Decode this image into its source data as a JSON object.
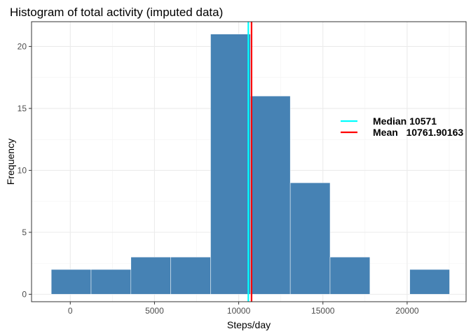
{
  "chart_data": {
    "type": "bar",
    "title": "Histogram of total activity (imputed data)",
    "xlabel": "Steps/day",
    "ylabel": "Frequency",
    "xlim": [
      -2300,
      23500
    ],
    "ylim": [
      -0.6,
      22
    ],
    "x_ticks": [
      0,
      5000,
      10000,
      15000,
      20000
    ],
    "x_tick_labels": [
      "0",
      "5000",
      "10000",
      "15000",
      "20000"
    ],
    "y_ticks": [
      0,
      5,
      10,
      15,
      20
    ],
    "y_tick_labels": [
      "0",
      "5",
      "10",
      "15",
      "20"
    ],
    "bins": [
      {
        "x0": -1129,
        "x1": 1236,
        "count": 2
      },
      {
        "x0": 1236,
        "x1": 3601,
        "count": 2
      },
      {
        "x0": 3601,
        "x1": 5966,
        "count": 3
      },
      {
        "x0": 5966,
        "x1": 8331,
        "count": 3
      },
      {
        "x0": 8331,
        "x1": 10696,
        "count": 21
      },
      {
        "x0": 10696,
        "x1": 13061,
        "count": 16
      },
      {
        "x0": 13061,
        "x1": 15426,
        "count": 9
      },
      {
        "x0": 15426,
        "x1": 17791,
        "count": 3
      },
      {
        "x0": 17791,
        "x1": 20156,
        "count": 0
      },
      {
        "x0": 20156,
        "x1": 22521,
        "count": 2
      }
    ],
    "bar_color": "#4682B4",
    "bar_outline": "#ffffff",
    "grid": true,
    "lines": [
      {
        "name": "Median 10571",
        "value": 10571,
        "color": "#00FFFF"
      },
      {
        "name": "Mean   10761.90163",
        "value": 10761.90163,
        "color": "#FF0000"
      }
    ],
    "legend_position": "right"
  }
}
